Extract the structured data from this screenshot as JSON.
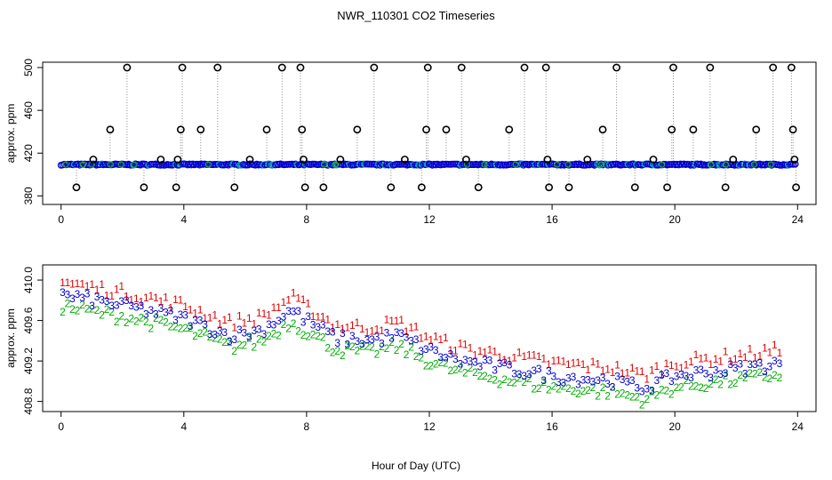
{
  "title": "NWR_110301  CO2 Timeseries",
  "xlabel": "Hour of Day (UTC)",
  "chart_data": [
    {
      "type": "scatter",
      "title": "NWR_110301  CO2 Timeseries",
      "xlabel": "",
      "ylabel": "approx. ppm",
      "xlim": [
        -0.6,
        24.6
      ],
      "ylim": [
        372,
        505
      ],
      "xticks": [
        0,
        4,
        8,
        12,
        16,
        20,
        24
      ],
      "yticks": [
        380,
        420,
        460,
        500
      ],
      "baseline": 409.3,
      "spikes": [
        {
          "x": 2.15,
          "y": 500
        },
        {
          "x": 3.95,
          "y": 500
        },
        {
          "x": 5.1,
          "y": 500
        },
        {
          "x": 7.2,
          "y": 500
        },
        {
          "x": 7.8,
          "y": 500
        },
        {
          "x": 10.2,
          "y": 500
        },
        {
          "x": 11.95,
          "y": 500
        },
        {
          "x": 13.05,
          "y": 500
        },
        {
          "x": 15.1,
          "y": 500
        },
        {
          "x": 15.8,
          "y": 500
        },
        {
          "x": 18.1,
          "y": 500
        },
        {
          "x": 19.95,
          "y": 500
        },
        {
          "x": 21.15,
          "y": 500
        },
        {
          "x": 23.2,
          "y": 500
        },
        {
          "x": 23.8,
          "y": 500
        },
        {
          "x": 1.6,
          "y": 442
        },
        {
          "x": 3.9,
          "y": 442
        },
        {
          "x": 4.55,
          "y": 442
        },
        {
          "x": 6.7,
          "y": 442
        },
        {
          "x": 7.85,
          "y": 442
        },
        {
          "x": 9.65,
          "y": 442
        },
        {
          "x": 11.9,
          "y": 442
        },
        {
          "x": 12.55,
          "y": 442
        },
        {
          "x": 14.6,
          "y": 442
        },
        {
          "x": 17.65,
          "y": 442
        },
        {
          "x": 19.9,
          "y": 442
        },
        {
          "x": 20.6,
          "y": 442
        },
        {
          "x": 22.65,
          "y": 442
        },
        {
          "x": 23.85,
          "y": 442
        },
        {
          "x": 1.05,
          "y": 414
        },
        {
          "x": 3.25,
          "y": 414
        },
        {
          "x": 3.8,
          "y": 414
        },
        {
          "x": 6.15,
          "y": 414
        },
        {
          "x": 7.9,
          "y": 414
        },
        {
          "x": 9.1,
          "y": 414
        },
        {
          "x": 11.2,
          "y": 414
        },
        {
          "x": 13.2,
          "y": 414
        },
        {
          "x": 15.85,
          "y": 414
        },
        {
          "x": 17.15,
          "y": 414
        },
        {
          "x": 19.3,
          "y": 414
        },
        {
          "x": 21.9,
          "y": 414
        },
        {
          "x": 23.9,
          "y": 414
        },
        {
          "x": 0.5,
          "y": 388
        },
        {
          "x": 2.7,
          "y": 388
        },
        {
          "x": 3.75,
          "y": 388
        },
        {
          "x": 5.65,
          "y": 388
        },
        {
          "x": 7.95,
          "y": 388
        },
        {
          "x": 8.55,
          "y": 388
        },
        {
          "x": 10.75,
          "y": 388
        },
        {
          "x": 11.75,
          "y": 388
        },
        {
          "x": 13.6,
          "y": 388
        },
        {
          "x": 15.9,
          "y": 388
        },
        {
          "x": 16.55,
          "y": 388
        },
        {
          "x": 18.7,
          "y": 388
        },
        {
          "x": 19.75,
          "y": 388
        },
        {
          "x": 21.65,
          "y": 388
        },
        {
          "x": 23.95,
          "y": 388
        }
      ]
    },
    {
      "type": "scatter",
      "title": "",
      "xlabel": "Hour of Day (UTC)",
      "ylabel": "approx. ppm",
      "xlim": [
        -0.6,
        24.6
      ],
      "ylim": [
        408.7,
        410.15
      ],
      "xticks": [
        0,
        4,
        8,
        12,
        16,
        20,
        24
      ],
      "yticks": [
        408.8,
        409.2,
        409.6,
        410.0
      ],
      "series_markers": [
        {
          "name": "1",
          "color": "#e00000",
          "offset": 0.13
        },
        {
          "name": "2",
          "color": "#00aa00",
          "offset": -0.11
        },
        {
          "name": "3",
          "color": "#0000cc",
          "offset": 0.0
        }
      ],
      "trend": {
        "x": [
          0,
          2,
          4,
          5.5,
          6.5,
          7.5,
          8,
          9,
          10,
          11,
          12,
          13,
          14,
          16,
          18,
          19,
          20,
          22,
          24
        ],
        "y": [
          409.85,
          409.75,
          409.62,
          409.45,
          409.5,
          409.7,
          409.6,
          409.42,
          409.4,
          409.45,
          409.3,
          409.2,
          409.15,
          409.05,
          409.0,
          408.93,
          409.05,
          409.12,
          409.2
        ]
      }
    }
  ]
}
